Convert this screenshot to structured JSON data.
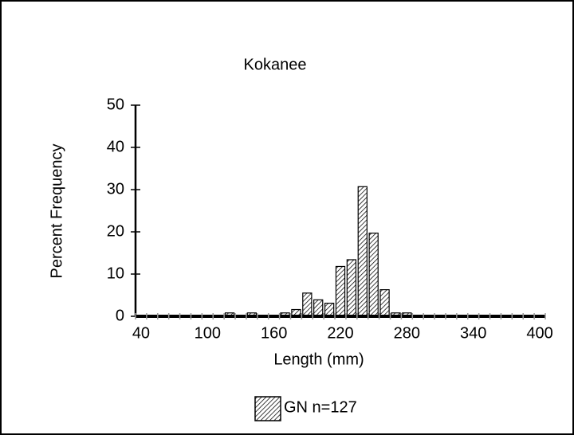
{
  "chart_data": {
    "type": "bar",
    "title": "Kokanee",
    "x_label": "Length (mm)",
    "y_label": "Percent Frequency",
    "categories": [
      "40",
      null,
      null,
      null,
      null,
      null,
      "100",
      null,
      null,
      null,
      null,
      null,
      "160",
      null,
      null,
      null,
      null,
      null,
      "220",
      null,
      null,
      null,
      null,
      null,
      "280",
      null,
      null,
      null,
      null,
      null,
      "340",
      null,
      null,
      null,
      null,
      null,
      "400"
    ],
    "series": [
      {
        "name": "GN n=127",
        "color": "#000000",
        "values": [
          0,
          0,
          0,
          0,
          0,
          0,
          0,
          0,
          0.8,
          0,
          0.8,
          0,
          0,
          0.8,
          1.6,
          5.5,
          3.9,
          3.1,
          11.8,
          13.4,
          30.7,
          19.7,
          6.3,
          0.8,
          0.8,
          0,
          0,
          0,
          0,
          0,
          0,
          0,
          0,
          0,
          0,
          0,
          0
        ]
      }
    ],
    "ylim": [
      0,
      50
    ],
    "yticks": [
      0,
      10,
      20,
      30,
      40,
      50
    ],
    "grid": false
  }
}
